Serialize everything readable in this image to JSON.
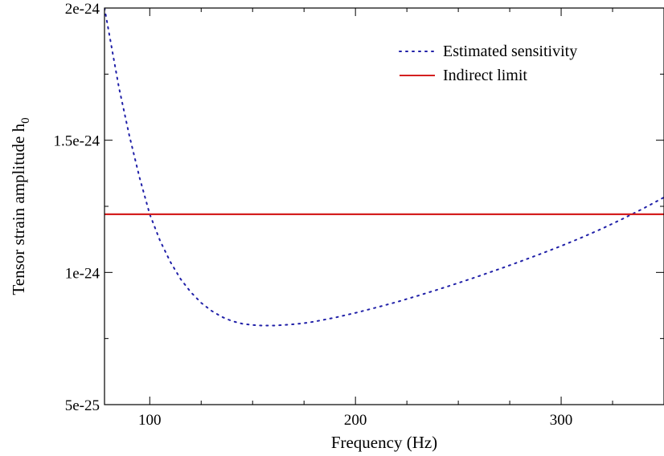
{
  "chart_data": {
    "type": "line",
    "title": "",
    "xlabel": "Frequency (Hz)",
    "ylabel": "Tensor strain amplitude h",
    "ylabel_subscript": "0",
    "xlim": [
      78,
      350
    ],
    "ylim": [
      5e-25,
      2e-24
    ],
    "grid": false,
    "legend_position": "top-right",
    "x_ticks": [
      {
        "value": 100,
        "label": "100"
      },
      {
        "value": 200,
        "label": "200"
      },
      {
        "value": 300,
        "label": "300"
      }
    ],
    "y_ticks": [
      {
        "value": 5e-25,
        "label": "5e-25"
      },
      {
        "value": 1e-24,
        "label": "1e-24"
      },
      {
        "value": 1.5e-24,
        "label": "1.5e-24"
      },
      {
        "value": 2e-24,
        "label": "2e-24"
      }
    ],
    "series": [
      {
        "name": "Estimated sensitivity",
        "style": "dotted",
        "color": "#2020a8",
        "x": [
          78,
          85,
          90,
          95,
          100,
          105,
          110,
          115,
          120,
          125,
          130,
          135,
          140,
          145,
          150,
          155,
          160,
          165,
          170,
          175,
          180,
          190,
          200,
          210,
          220,
          230,
          240,
          250,
          260,
          270,
          280,
          290,
          300,
          310,
          320,
          330,
          340,
          350
        ],
        "y": [
          2e-24,
          1.7e-24,
          1.52e-24,
          1.36e-24,
          1.22e-24,
          1.12e-24,
          1.04e-24,
          9.75e-25,
          9.25e-25,
          8.85e-25,
          8.55e-25,
          8.32e-25,
          8.16e-25,
          8.06e-25,
          8.01e-25,
          7.99e-25,
          7.99e-25,
          8.01e-25,
          8.04e-25,
          8.08e-25,
          8.14e-25,
          8.29e-25,
          8.47e-25,
          8.67e-25,
          8.88e-25,
          9.11e-25,
          9.35e-25,
          9.6e-25,
          9.86e-25,
          1.013e-24,
          1.041e-24,
          1.07e-24,
          1.1e-24,
          1.132e-24,
          1.166e-24,
          1.203e-24,
          1.242e-24,
          1.284e-24
        ]
      },
      {
        "name": "Indirect limit",
        "style": "solid",
        "color": "#d42020",
        "x": [
          78,
          350
        ],
        "y": [
          1.22e-24,
          1.22e-24
        ]
      }
    ]
  }
}
